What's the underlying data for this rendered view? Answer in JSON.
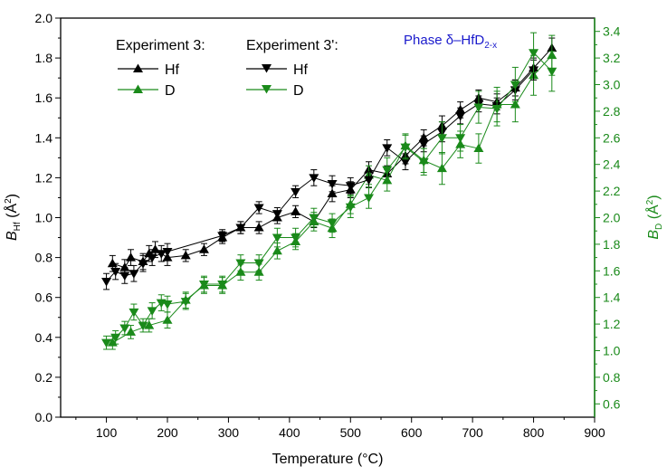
{
  "chart_data": {
    "type": "scatter",
    "xlabel": "Temperature (°C)",
    "ylabel": {
      "main": "B",
      "sub": "Hf",
      "unit": " (Å",
      "sup": "2",
      "close": ")"
    },
    "y2label": {
      "main": "B",
      "sub": "D",
      "unit": " (Å",
      "sup": "2",
      "close": ")"
    },
    "xlim": [
      25,
      900
    ],
    "ylim": [
      0,
      2.0
    ],
    "y2lim": [
      0.5,
      3.5
    ],
    "xticks": [
      "100",
      "200",
      "300",
      "400",
      "500",
      "600",
      "700",
      "800",
      "900"
    ],
    "yticks": [
      "0.0",
      "0.2",
      "0.4",
      "0.6",
      "0.8",
      "1.0",
      "1.2",
      "1.4",
      "1.6",
      "1.8",
      "2.0"
    ],
    "y2ticks": [
      "0.6",
      "0.8",
      "1.0",
      "1.2",
      "1.4",
      "1.6",
      "1.8",
      "2.0",
      "2.2",
      "2.4",
      "2.6",
      "2.8",
      "3.0",
      "3.2",
      "3.4"
    ],
    "phase_label": {
      "prefix": "Phase ",
      "delta": "δ",
      "middle": "–HfD",
      "sub": "2-x"
    },
    "colors": {
      "hf": "#000000",
      "d": "#1a8a1a",
      "y2axis": "#1a8a1a",
      "phase": "#1a1acc"
    },
    "legend": {
      "group1_title": "Experiment 3:",
      "group2_title": "Experiment 3':",
      "hf_label": "Hf",
      "d_label": "D"
    },
    "series": [
      {
        "name": "Experiment 3: Hf",
        "axis": "left",
        "marker": "triangle-up",
        "color": "#000000",
        "x": [
          110,
          130,
          140,
          160,
          170,
          180,
          200,
          230,
          260,
          290,
          320,
          350,
          380,
          410,
          440,
          470,
          500,
          530,
          560,
          590,
          620,
          650,
          680,
          710,
          740,
          770,
          800,
          830
        ],
        "y": [
          0.77,
          0.75,
          0.8,
          0.78,
          0.82,
          0.84,
          0.8,
          0.81,
          0.84,
          0.9,
          0.95,
          0.95,
          1.0,
          1.03,
          0.98,
          1.12,
          1.14,
          1.24,
          1.22,
          1.31,
          1.4,
          1.46,
          1.54,
          1.6,
          1.58,
          1.65,
          1.75,
          1.85
        ],
        "err": [
          0.04,
          0.04,
          0.04,
          0.04,
          0.04,
          0.04,
          0.04,
          0.03,
          0.03,
          0.03,
          0.03,
          0.03,
          0.03,
          0.03,
          0.03,
          0.04,
          0.04,
          0.04,
          0.04,
          0.04,
          0.04,
          0.05,
          0.04,
          0.04,
          0.04,
          0.04,
          0.05,
          0.05
        ]
      },
      {
        "name": "Experiment 3: D",
        "axis": "right",
        "marker": "triangle-up",
        "color": "#1a8a1a",
        "x": [
          110,
          140,
          170,
          200,
          230,
          260,
          290,
          320,
          350,
          380,
          410,
          440,
          470,
          500,
          530,
          560,
          590,
          620,
          650,
          680,
          710,
          740,
          770,
          800,
          830
        ],
        "y": [
          1.06,
          1.14,
          1.19,
          1.23,
          1.38,
          1.49,
          1.49,
          1.59,
          1.59,
          1.75,
          1.82,
          1.97,
          1.92,
          2.1,
          2.32,
          2.28,
          2.54,
          2.43,
          2.37,
          2.55,
          2.52,
          2.85,
          2.85,
          3.07,
          3.22
        ],
        "err": [
          0.05,
          0.05,
          0.05,
          0.06,
          0.06,
          0.06,
          0.06,
          0.06,
          0.06,
          0.06,
          0.06,
          0.07,
          0.07,
          0.07,
          0.07,
          0.08,
          0.09,
          0.09,
          0.12,
          0.1,
          0.11,
          0.13,
          0.13,
          0.15,
          0.15
        ]
      },
      {
        "name": "Experiment 3': Hf",
        "axis": "left",
        "marker": "triangle-down",
        "color": "#000000",
        "x": [
          100,
          115,
          130,
          145,
          160,
          175,
          190,
          200,
          290,
          320,
          350,
          380,
          410,
          440,
          470,
          500,
          530,
          560,
          590,
          620,
          650,
          680,
          710,
          740,
          770,
          800
        ],
        "y": [
          0.68,
          0.73,
          0.71,
          0.72,
          0.77,
          0.8,
          0.82,
          0.83,
          0.91,
          0.95,
          1.05,
          1.02,
          1.13,
          1.2,
          1.17,
          1.16,
          1.19,
          1.35,
          1.28,
          1.37,
          1.43,
          1.51,
          1.57,
          1.56,
          1.64,
          1.74
        ],
        "err": [
          0.04,
          0.04,
          0.04,
          0.04,
          0.04,
          0.04,
          0.04,
          0.04,
          0.03,
          0.03,
          0.03,
          0.03,
          0.03,
          0.04,
          0.04,
          0.04,
          0.04,
          0.04,
          0.04,
          0.04,
          0.05,
          0.04,
          0.04,
          0.04,
          0.05,
          0.05
        ]
      },
      {
        "name": "Experiment 3': D",
        "axis": "right",
        "marker": "triangle-down",
        "color": "#1a8a1a",
        "x": [
          100,
          115,
          130,
          145,
          160,
          175,
          190,
          200,
          230,
          260,
          290,
          320,
          350,
          380,
          410,
          440,
          470,
          500,
          530,
          560,
          590,
          620,
          650,
          680,
          710,
          740,
          770,
          800,
          830
        ],
        "y": [
          1.06,
          1.1,
          1.17,
          1.29,
          1.19,
          1.3,
          1.36,
          1.35,
          1.37,
          1.5,
          1.5,
          1.66,
          1.66,
          1.85,
          1.85,
          2.0,
          1.96,
          2.08,
          2.15,
          2.36,
          2.53,
          2.42,
          2.6,
          2.6,
          2.83,
          2.82,
          3.0,
          3.24,
          3.1
        ],
        "err": [
          0.05,
          0.05,
          0.05,
          0.06,
          0.05,
          0.06,
          0.06,
          0.06,
          0.06,
          0.06,
          0.06,
          0.06,
          0.06,
          0.07,
          0.07,
          0.07,
          0.07,
          0.08,
          0.08,
          0.09,
          0.09,
          0.1,
          0.12,
          0.1,
          0.12,
          0.13,
          0.13,
          0.15,
          0.15
        ]
      }
    ]
  }
}
